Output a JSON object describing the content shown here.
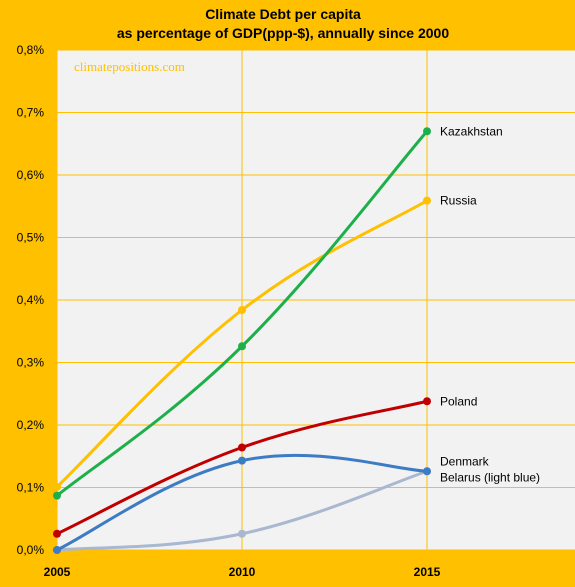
{
  "chart_data": {
    "type": "line",
    "title": [
      "Climate Debt per capita",
      "as percentage of GDP(ppp-$), annually since 2000"
    ],
    "watermark": "climatepositions.com",
    "x": [
      2005,
      2010,
      2015
    ],
    "x_ticks": [
      "2005",
      "2010",
      "2015"
    ],
    "xlim": [
      2005,
      2019
    ],
    "ylim": [
      0,
      0.8
    ],
    "y_ticks": [
      "0,0%",
      "0,1%",
      "0,2%",
      "0,3%",
      "0,4%",
      "0,5%",
      "0,6%",
      "0,7%",
      "0,8%"
    ],
    "grid": true,
    "series": [
      {
        "name": "Kazakhstan",
        "label": "Kazakhstan",
        "color": "#1DB04A",
        "values": [
          0.087,
          0.326,
          0.67
        ]
      },
      {
        "name": "Russia",
        "label": "Russia",
        "color": "#FFC000",
        "values": [
          0.101,
          0.384,
          0.559
        ]
      },
      {
        "name": "Poland",
        "label": "Poland",
        "color": "#C00000",
        "values": [
          0.026,
          0.164,
          0.238
        ]
      },
      {
        "name": "Denmark",
        "label": "Denmark",
        "color": "#3D7BC4",
        "values": [
          0.0,
          0.143,
          0.126
        ]
      },
      {
        "name": "Belarus (light blue)",
        "label": "Belarus (light blue)",
        "color": "#A9B8D0",
        "values": [
          0.0,
          0.026,
          0.126
        ]
      }
    ]
  }
}
